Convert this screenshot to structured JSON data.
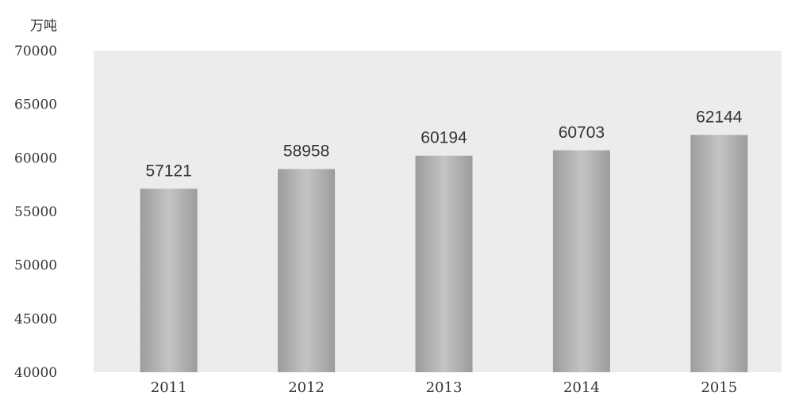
{
  "chart_data": {
    "type": "bar",
    "unit": "万吨",
    "categories": [
      "2011",
      "2012",
      "2013",
      "2014",
      "2015"
    ],
    "values": [
      57121,
      58958,
      60194,
      60703,
      62144
    ],
    "data_labels": [
      "57121",
      "58958",
      "60194",
      "60703",
      "62144"
    ],
    "ylim": [
      40000,
      70000
    ],
    "yticks": [
      "70000",
      "65000",
      "60000",
      "55000",
      "50000",
      "45000",
      "40000"
    ],
    "grid": false,
    "legend": "none",
    "colors": {
      "plot_background": "#ececec",
      "bar": "#a9a9a9",
      "text": "#333333"
    }
  }
}
